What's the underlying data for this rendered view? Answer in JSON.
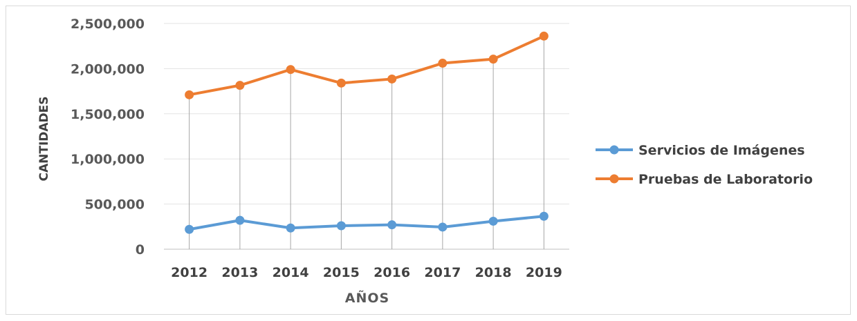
{
  "chart_data": {
    "type": "line",
    "title": "",
    "xlabel": "AÑOS",
    "ylabel": "CANTIDADES",
    "categories": [
      "2012",
      "2013",
      "2014",
      "2015",
      "2016",
      "2017",
      "2018",
      "2019"
    ],
    "ylim": [
      0,
      2500000
    ],
    "yticks": [
      0,
      500000,
      1000000,
      1500000,
      2000000,
      2500000
    ],
    "ytick_labels": [
      "0",
      "500,000",
      "1,000,000",
      "1,500,000",
      "2,000,000",
      "2,500,000"
    ],
    "grid": true,
    "drop_lines": true,
    "legend_position": "right",
    "series": [
      {
        "name": "Servicios de Imágenes",
        "color": "#5b9bd5",
        "values": [
          220000,
          320000,
          235000,
          260000,
          270000,
          245000,
          310000,
          365000
        ]
      },
      {
        "name": "Pruebas de Laboratorio",
        "color": "#ed7d31",
        "values": [
          1710000,
          1815000,
          1990000,
          1840000,
          1885000,
          2060000,
          2105000,
          2360000
        ]
      }
    ]
  }
}
